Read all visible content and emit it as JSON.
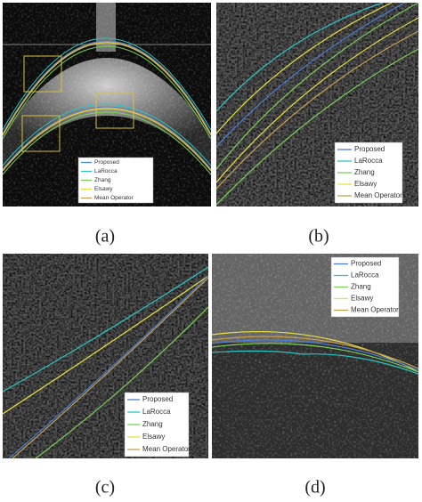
{
  "panels": [
    {
      "caption": "(a)",
      "legend": [
        "Proposed",
        "LaRocca",
        "Zhang",
        "Elsawy",
        "Mean Operator"
      ]
    },
    {
      "caption": "(b)",
      "legend": [
        "Proposed",
        "LaRocca",
        "Zhang",
        "Elsawy",
        "Mean Operator"
      ]
    },
    {
      "caption": "(c)",
      "legend": [
        "Proposed",
        "LaRocca",
        "Zhang",
        "Elsawy",
        "Mean Operator"
      ]
    },
    {
      "caption": "(d)",
      "legend": [
        "Proposed",
        "LaRocca",
        "Zhang",
        "Elsawy",
        "Mean Operator"
      ]
    }
  ]
}
